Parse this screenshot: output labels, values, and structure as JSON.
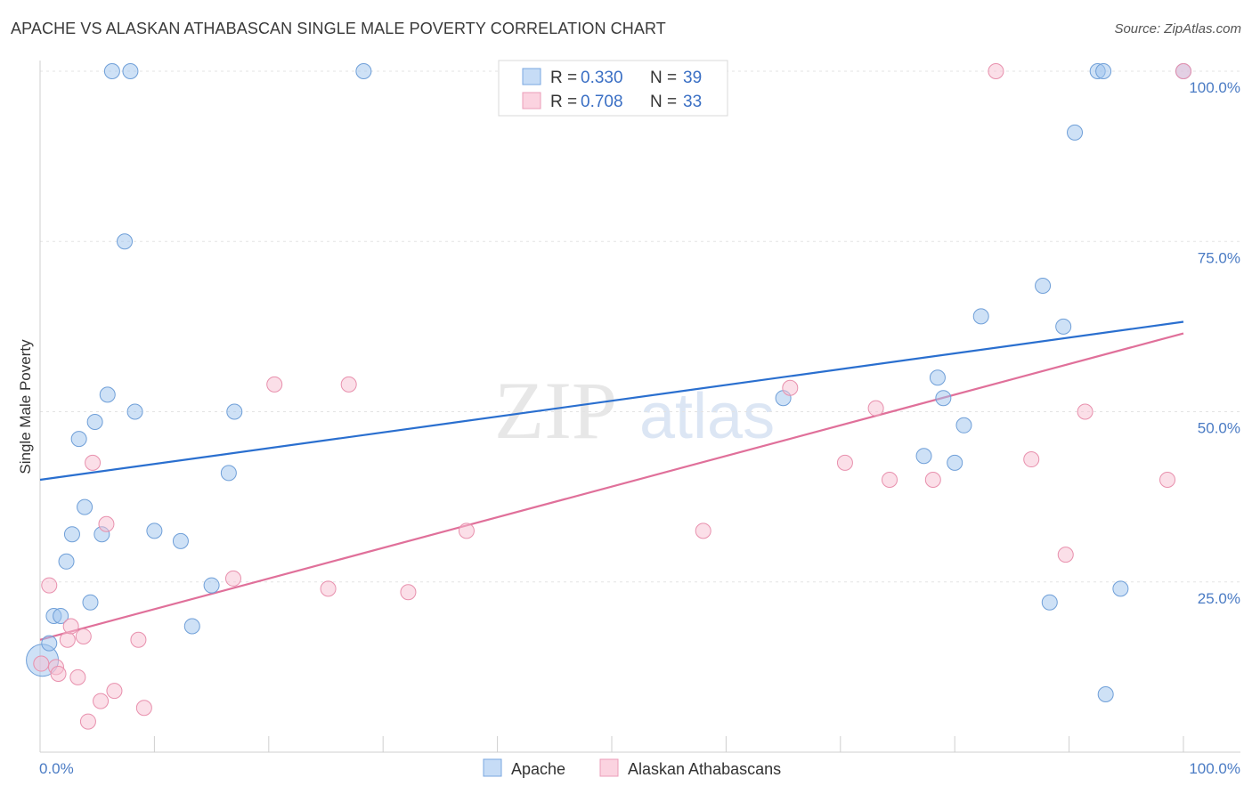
{
  "title": "APACHE VS ALASKAN ATHABASCAN SINGLE MALE POVERTY CORRELATION CHART",
  "source": "Source: ZipAtlas.com",
  "watermark": {
    "zip": "ZIP",
    "atlas": "atlas"
  },
  "chart_data": {
    "type": "scatter",
    "title": "APACHE VS ALASKAN ATHABASCAN SINGLE MALE POVERTY CORRELATION CHART",
    "xlabel": "",
    "ylabel": "Single Male Poverty",
    "xlim": [
      0,
      100
    ],
    "ylim": [
      0,
      100
    ],
    "x_tick_labels": [
      "0.0%",
      "100.0%"
    ],
    "y_ticks": [
      25,
      50,
      75,
      100
    ],
    "y_tick_labels": [
      "25.0%",
      "50.0%",
      "75.0%",
      "100.0%"
    ],
    "grid": true,
    "legend_position": "top-center",
    "series": [
      {
        "name": "Apache",
        "color": "#9ec3ee",
        "edge": "#6f9fd8",
        "line_color": "#2a6fcf",
        "r_label": "R =",
        "r_value": "0.330",
        "n_label": "N =",
        "n_value": "39",
        "trend": {
          "x": [
            0,
            100
          ],
          "y": [
            40,
            63.2
          ]
        },
        "points": [
          {
            "x": 0.2,
            "y": 13.5,
            "big": true
          },
          {
            "x": 0.8,
            "y": 16
          },
          {
            "x": 1.2,
            "y": 20
          },
          {
            "x": 1.8,
            "y": 20
          },
          {
            "x": 2.3,
            "y": 28
          },
          {
            "x": 2.8,
            "y": 32
          },
          {
            "x": 3.4,
            "y": 46
          },
          {
            "x": 3.9,
            "y": 36
          },
          {
            "x": 4.4,
            "y": 22
          },
          {
            "x": 4.8,
            "y": 48.5
          },
          {
            "x": 5.4,
            "y": 32
          },
          {
            "x": 5.9,
            "y": 52.5
          },
          {
            "x": 6.3,
            "y": 100
          },
          {
            "x": 7.4,
            "y": 75
          },
          {
            "x": 7.9,
            "y": 100
          },
          {
            "x": 8.3,
            "y": 50
          },
          {
            "x": 10,
            "y": 32.5
          },
          {
            "x": 12.3,
            "y": 31
          },
          {
            "x": 13.3,
            "y": 18.5
          },
          {
            "x": 15,
            "y": 24.5
          },
          {
            "x": 16.5,
            "y": 41
          },
          {
            "x": 17,
            "y": 50
          },
          {
            "x": 28.3,
            "y": 100
          },
          {
            "x": 65,
            "y": 52
          },
          {
            "x": 77.3,
            "y": 43.5
          },
          {
            "x": 78.5,
            "y": 55
          },
          {
            "x": 79,
            "y": 52
          },
          {
            "x": 80,
            "y": 42.5
          },
          {
            "x": 80.8,
            "y": 48
          },
          {
            "x": 82.3,
            "y": 64
          },
          {
            "x": 87.7,
            "y": 68.5
          },
          {
            "x": 88.3,
            "y": 22
          },
          {
            "x": 89.5,
            "y": 62.5
          },
          {
            "x": 90.5,
            "y": 91
          },
          {
            "x": 92.5,
            "y": 100
          },
          {
            "x": 93,
            "y": 100
          },
          {
            "x": 93.2,
            "y": 8.5
          },
          {
            "x": 94.5,
            "y": 24
          },
          {
            "x": 100,
            "y": 100
          }
        ]
      },
      {
        "name": "Alaskan Athabascans",
        "color": "#f8bfd2",
        "edge": "#e890ad",
        "line_color": "#e0709a",
        "r_label": "R =",
        "r_value": "0.708",
        "n_label": "N =",
        "n_value": "33",
        "trend": {
          "x": [
            0,
            100
          ],
          "y": [
            16.5,
            61.5
          ]
        },
        "points": [
          {
            "x": 0.1,
            "y": 13
          },
          {
            "x": 0.8,
            "y": 24.5
          },
          {
            "x": 1.4,
            "y": 12.5
          },
          {
            "x": 1.6,
            "y": 11.5
          },
          {
            "x": 2.4,
            "y": 16.5
          },
          {
            "x": 2.7,
            "y": 18.5
          },
          {
            "x": 3.3,
            "y": 11
          },
          {
            "x": 3.8,
            "y": 17
          },
          {
            "x": 4.2,
            "y": 4.5
          },
          {
            "x": 4.6,
            "y": 42.5
          },
          {
            "x": 5.3,
            "y": 7.5
          },
          {
            "x": 5.8,
            "y": 33.5
          },
          {
            "x": 6.5,
            "y": 9
          },
          {
            "x": 8.6,
            "y": 16.5
          },
          {
            "x": 9.1,
            "y": 6.5
          },
          {
            "x": 16.9,
            "y": 25.5
          },
          {
            "x": 20.5,
            "y": 54
          },
          {
            "x": 25.2,
            "y": 24
          },
          {
            "x": 27,
            "y": 54
          },
          {
            "x": 32.2,
            "y": 23.5
          },
          {
            "x": 37.3,
            "y": 32.5
          },
          {
            "x": 58,
            "y": 32.5
          },
          {
            "x": 65.6,
            "y": 53.5
          },
          {
            "x": 70.4,
            "y": 42.5
          },
          {
            "x": 73.1,
            "y": 50.5
          },
          {
            "x": 74.3,
            "y": 40
          },
          {
            "x": 78.1,
            "y": 40
          },
          {
            "x": 83.6,
            "y": 100
          },
          {
            "x": 86.7,
            "y": 43
          },
          {
            "x": 89.7,
            "y": 29
          },
          {
            "x": 91.4,
            "y": 50
          },
          {
            "x": 98.6,
            "y": 40
          },
          {
            "x": 100,
            "y": 100
          }
        ]
      }
    ]
  }
}
